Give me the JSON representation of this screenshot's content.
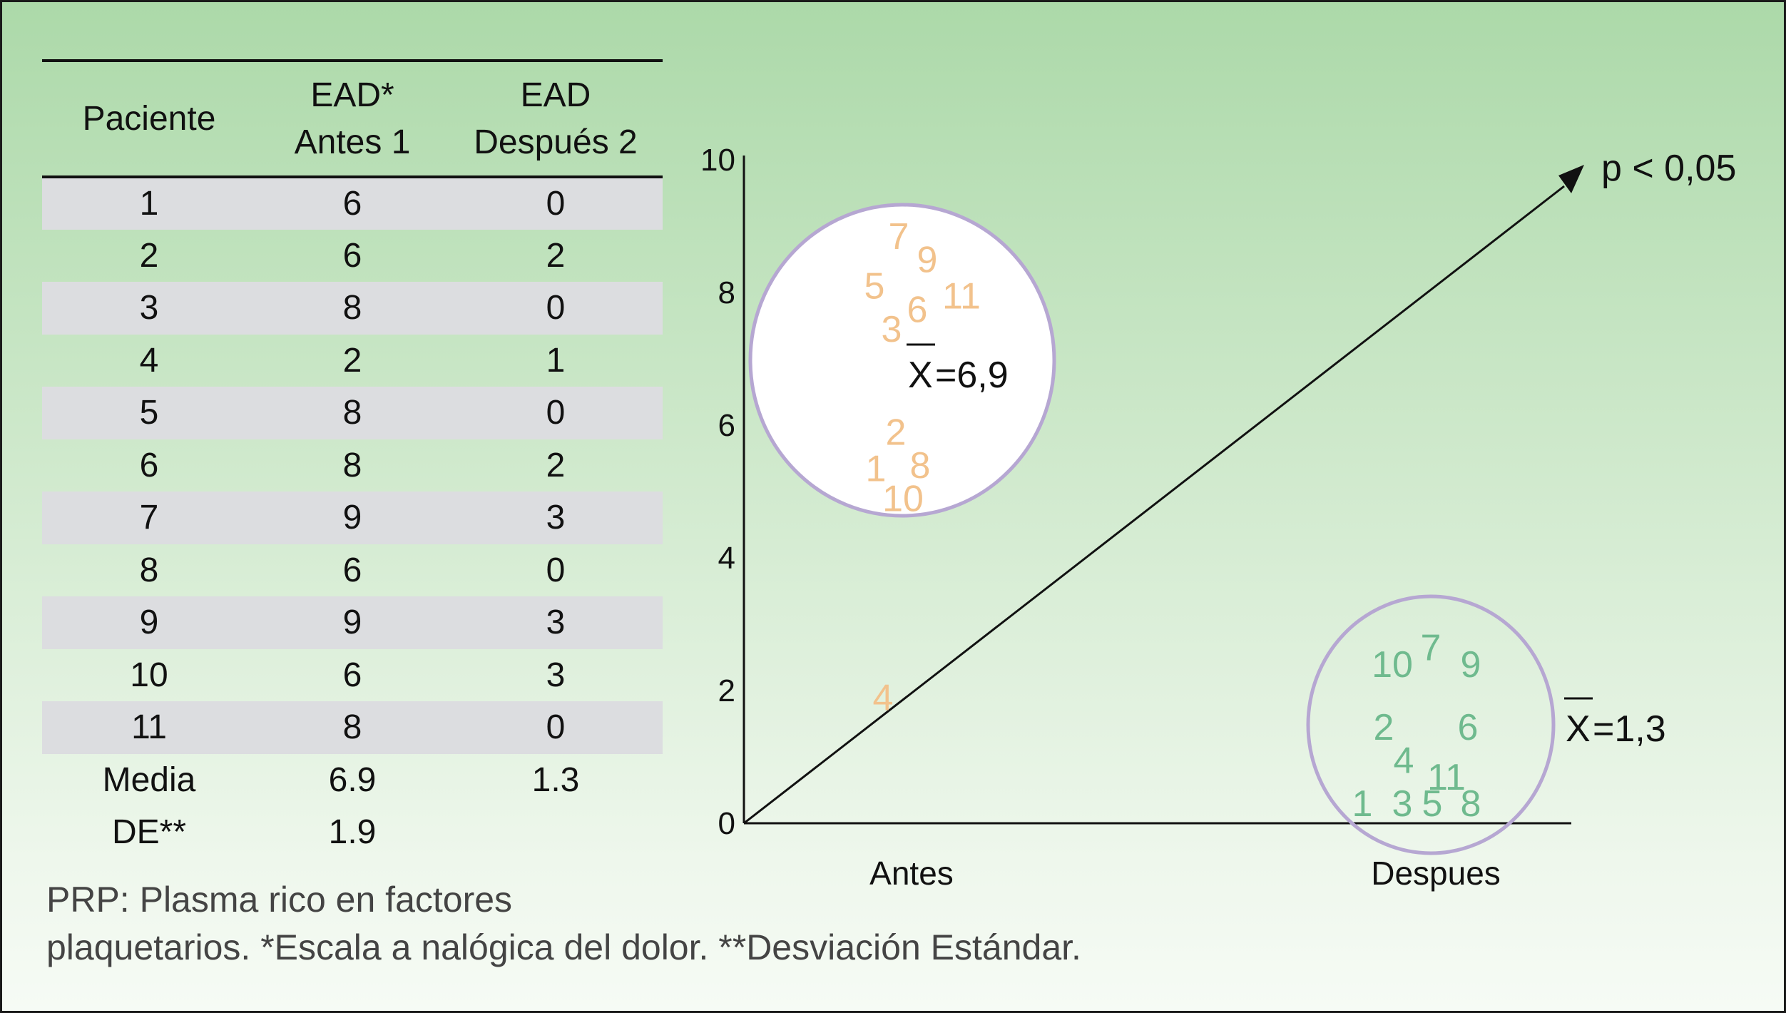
{
  "table": {
    "headers": [
      [
        "Paciente"
      ],
      [
        "EAD*",
        "Antes 1"
      ],
      [
        "EAD",
        "Después 2"
      ]
    ],
    "rows": [
      [
        "1",
        "6",
        "0"
      ],
      [
        "2",
        "6",
        "2"
      ],
      [
        "3",
        "8",
        "0"
      ],
      [
        "4",
        "2",
        "1"
      ],
      [
        "5",
        "8",
        "0"
      ],
      [
        "6",
        "8",
        "2"
      ],
      [
        "7",
        "9",
        "3"
      ],
      [
        "8",
        "6",
        "0"
      ],
      [
        "9",
        "9",
        "3"
      ],
      [
        "10",
        "6",
        "3"
      ],
      [
        "11",
        "8",
        "0"
      ]
    ],
    "footer_rows": [
      [
        "Media",
        "6.9",
        "1.3"
      ],
      [
        "DE**",
        "1.9",
        ""
      ]
    ]
  },
  "footnote": {
    "line1": "PRP: Plasma rico en factores",
    "line2": "plaquetarios. *Escala a nalógica del dolor. **Desviación Estándar."
  },
  "chart_data": {
    "type": "scatter",
    "y_ticks": [
      "0",
      "2",
      "4",
      "6",
      "8",
      "10"
    ],
    "ylim": [
      0,
      10
    ],
    "categories": [
      "Antes",
      "Despues"
    ],
    "annotation": "p < 0,05",
    "groups": [
      {
        "category": "Antes",
        "color": "#f2c28c",
        "mean_symbol": "X",
        "mean_label": "=6,9",
        "points": [
          {
            "label": "7",
            "dx": -18,
            "y": 8.85
          },
          {
            "label": "9",
            "dx": 22,
            "y": 8.5
          },
          {
            "label": "5",
            "dx": -52,
            "y": 8.1
          },
          {
            "label": "11",
            "dx": 70,
            "y": 7.95
          },
          {
            "label": "6",
            "dx": 8,
            "y": 7.75
          },
          {
            "label": "3",
            "dx": -28,
            "y": 7.45
          },
          {
            "label": "2",
            "dx": -22,
            "y": 5.9
          },
          {
            "label": "8",
            "dx": 12,
            "y": 5.4
          },
          {
            "label": "1",
            "dx": -50,
            "y": 5.35
          },
          {
            "label": "10",
            "dx": -12,
            "y": 4.9
          },
          {
            "label": "4",
            "dx": -40,
            "y": 1.9
          }
        ]
      },
      {
        "category": "Despues",
        "color": "#6fba8e",
        "mean_symbol": "X",
        "mean_label": "=1,3",
        "points": [
          {
            "label": "7",
            "dx": 0,
            "y": 2.65
          },
          {
            "label": "10",
            "dx": -54,
            "y": 2.4
          },
          {
            "label": "9",
            "dx": 56,
            "y": 2.4
          },
          {
            "label": "2",
            "dx": -66,
            "y": 1.45
          },
          {
            "label": "6",
            "dx": 52,
            "y": 1.45
          },
          {
            "label": "4",
            "dx": -38,
            "y": 0.95
          },
          {
            "label": "11",
            "dx": 22,
            "y": 0.7
          },
          {
            "label": "1",
            "dx": -96,
            "y": 0.3
          },
          {
            "label": "3",
            "dx": -40,
            "y": 0.3
          },
          {
            "label": "5",
            "dx": 2,
            "y": 0.3
          },
          {
            "label": "8",
            "dx": 56,
            "y": 0.3
          }
        ]
      }
    ]
  }
}
